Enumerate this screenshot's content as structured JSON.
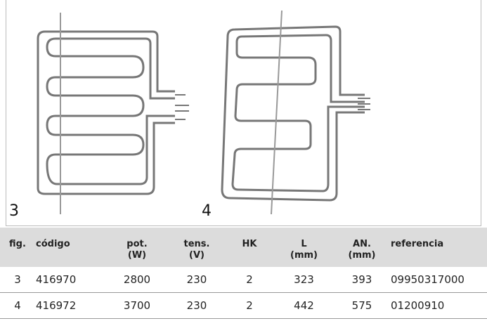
{
  "figures": [
    {
      "label": "3"
    },
    {
      "label": "4"
    }
  ],
  "table": {
    "headers": [
      [
        "fig."
      ],
      [
        "código"
      ],
      [
        "pot.",
        "(W)"
      ],
      [
        "tens.",
        "(V)"
      ],
      [
        "HK"
      ],
      [
        "L",
        "(mm)"
      ],
      [
        "AN.",
        "(mm)"
      ],
      [
        "referencia"
      ]
    ],
    "rows": [
      [
        "3",
        "416970",
        "2800",
        "230",
        "2",
        "323",
        "393",
        "09950317000"
      ],
      [
        "4",
        "416972",
        "3700",
        "230",
        "2",
        "442",
        "575",
        "01200910"
      ]
    ]
  }
}
